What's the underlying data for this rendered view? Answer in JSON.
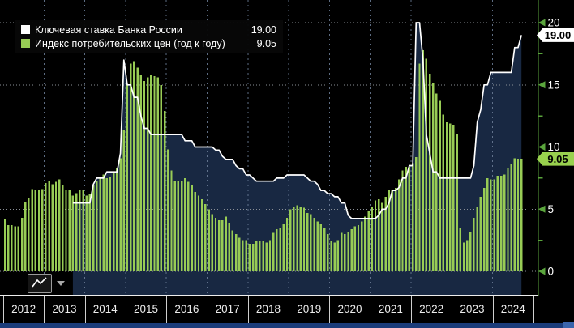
{
  "legend": {
    "items": [
      {
        "label": "Ключевая ставка Банка России",
        "value": "19.00",
        "swatch_color": "#ffffff"
      },
      {
        "label": "Индекс потребительских цен (год к году)",
        "value": "9.05",
        "swatch_color": "#98cc55"
      }
    ]
  },
  "y_axis": {
    "tick_labels": [
      "20",
      "15",
      "10",
      "5",
      "0"
    ],
    "tick_values": [
      20,
      15,
      10,
      5,
      0
    ],
    "minor_tick_values": [
      17.5,
      12.5,
      7.5,
      2.5
    ],
    "axis_color": "#5aa53c",
    "badges": [
      {
        "name": "key-rate-badge",
        "text": "19.00",
        "value": 19.0,
        "bg": "#ffffff"
      },
      {
        "name": "cpi-badge",
        "text": "9.05",
        "value": 9.05,
        "bg": "#99d14e"
      }
    ]
  },
  "x_axis": {
    "years": [
      "2012",
      "2013",
      "2014",
      "2015",
      "2016",
      "2017",
      "2018",
      "2019",
      "2020",
      "2021",
      "2022",
      "2023",
      "2024"
    ]
  },
  "chart_data": {
    "type": "mixed",
    "x_unit": "month",
    "x_start": "2012-01",
    "x_end": "2024-09",
    "ylim": [
      -1.9,
      21.8
    ],
    "grid": {
      "horizontal_ticks": [
        0,
        5,
        10,
        15,
        20
      ],
      "vertical": "year-boundaries"
    },
    "legend_position": "top-left",
    "series": [
      {
        "name": "Ключевая ставка Банка России",
        "type": "area-line",
        "line_color": "#ffffff",
        "fill_color": "#182842",
        "last_value": 19.0,
        "values": [
          null,
          null,
          null,
          null,
          null,
          null,
          null,
          null,
          null,
          null,
          null,
          null,
          null,
          null,
          null,
          null,
          null,
          null,
          null,
          null,
          5.5,
          5.5,
          5.5,
          5.5,
          5.5,
          5.5,
          7.0,
          7.5,
          7.5,
          7.5,
          8.0,
          8.0,
          8.0,
          8.0,
          9.5,
          17.0,
          15.0,
          15.0,
          14.0,
          14.0,
          12.5,
          11.5,
          11.5,
          11.0,
          11.0,
          11.0,
          11.0,
          11.0,
          11.0,
          11.0,
          11.0,
          11.0,
          11.0,
          10.5,
          10.5,
          10.5,
          10.0,
          10.0,
          10.0,
          10.0,
          10.0,
          10.0,
          9.75,
          9.75,
          9.25,
          9.0,
          9.0,
          9.0,
          8.5,
          8.25,
          8.25,
          7.75,
          7.75,
          7.5,
          7.25,
          7.25,
          7.25,
          7.25,
          7.25,
          7.25,
          7.5,
          7.5,
          7.5,
          7.75,
          7.75,
          7.75,
          7.75,
          7.75,
          7.75,
          7.5,
          7.25,
          7.25,
          7.0,
          6.5,
          6.5,
          6.25,
          6.25,
          6.0,
          6.0,
          5.5,
          5.5,
          4.5,
          4.25,
          4.25,
          4.25,
          4.25,
          4.25,
          4.25,
          4.25,
          4.25,
          4.5,
          5.0,
          5.0,
          5.5,
          6.5,
          6.5,
          6.75,
          7.5,
          7.5,
          8.5,
          8.5,
          20.0,
          20.0,
          17.0,
          11.0,
          9.5,
          8.0,
          8.0,
          7.5,
          7.5,
          7.5,
          7.5,
          7.5,
          7.5,
          7.5,
          7.5,
          7.5,
          7.5,
          8.5,
          12.0,
          13.0,
          15.0,
          15.0,
          16.0,
          16.0,
          16.0,
          16.0,
          16.0,
          16.0,
          16.0,
          18.0,
          18.0,
          19.0
        ]
      },
      {
        "name": "Индекс потребительских цен (год к году)",
        "type": "bar",
        "bar_color": "#98cc55",
        "last_value": 9.05,
        "values": [
          4.2,
          3.7,
          3.7,
          3.6,
          3.6,
          4.3,
          5.6,
          5.9,
          6.6,
          6.5,
          6.5,
          6.6,
          7.1,
          7.3,
          7.0,
          7.2,
          7.4,
          6.9,
          6.5,
          6.5,
          6.1,
          6.3,
          6.5,
          6.5,
          6.1,
          6.2,
          6.9,
          7.3,
          7.6,
          7.8,
          7.5,
          7.6,
          8.0,
          8.3,
          9.1,
          11.4,
          15.0,
          16.7,
          16.9,
          16.4,
          15.8,
          15.3,
          15.6,
          15.8,
          15.7,
          15.6,
          15.0,
          12.9,
          9.8,
          8.1,
          7.3,
          7.3,
          7.3,
          7.5,
          7.2,
          6.9,
          6.4,
          6.1,
          5.8,
          5.4,
          5.0,
          4.6,
          4.3,
          4.1,
          4.1,
          4.4,
          3.9,
          3.3,
          3.0,
          2.7,
          2.5,
          2.5,
          2.2,
          2.2,
          2.4,
          2.4,
          2.4,
          2.3,
          2.5,
          3.1,
          3.4,
          3.5,
          3.8,
          4.3,
          5.0,
          5.2,
          5.3,
          5.2,
          5.1,
          4.7,
          4.6,
          4.3,
          4.0,
          3.8,
          3.5,
          3.0,
          2.4,
          2.3,
          2.5,
          3.1,
          3.0,
          3.2,
          3.4,
          3.6,
          3.7,
          4.0,
          4.4,
          4.9,
          5.2,
          5.7,
          5.8,
          5.5,
          6.0,
          6.5,
          6.5,
          6.7,
          7.4,
          8.1,
          8.4,
          8.4,
          8.7,
          9.2,
          16.7,
          17.8,
          17.1,
          15.9,
          15.1,
          14.3,
          13.7,
          12.6,
          12.0,
          11.9,
          11.8,
          11.0,
          3.5,
          2.3,
          2.5,
          3.2,
          4.3,
          5.2,
          6.0,
          6.7,
          7.5,
          7.4,
          7.4,
          7.7,
          7.7,
          7.8,
          8.3,
          8.6,
          9.1,
          9.05,
          9.05
        ]
      }
    ]
  }
}
